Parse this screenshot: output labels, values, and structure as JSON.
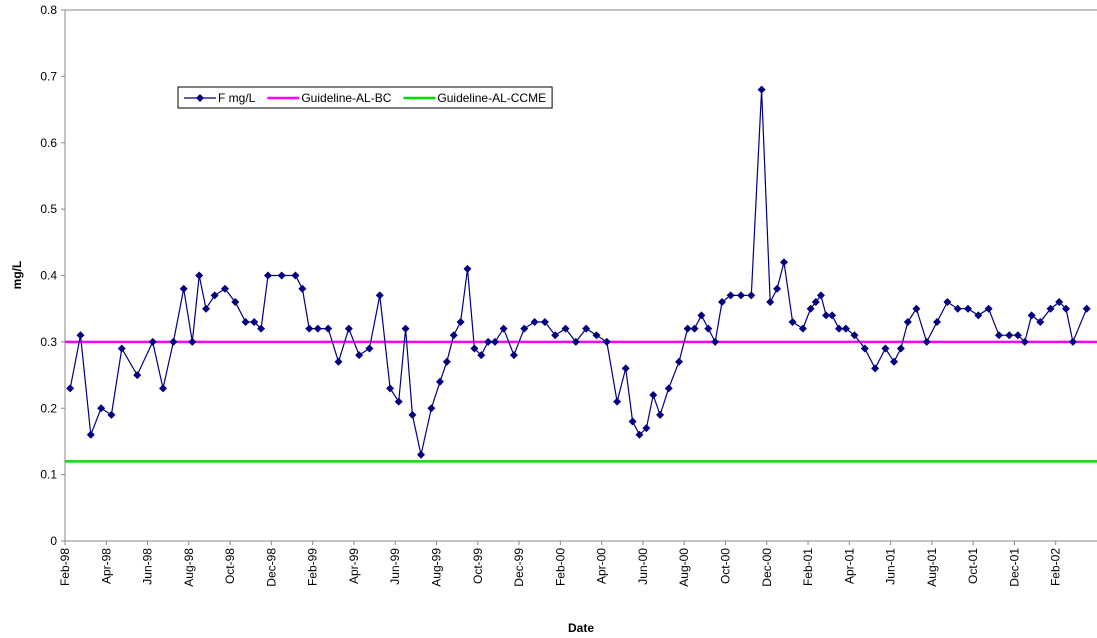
{
  "chart_data": {
    "type": "line",
    "xlabel": "Date",
    "ylabel": "mg/L",
    "ylim": [
      0,
      0.8
    ],
    "yticks": [
      0,
      0.1,
      0.2,
      0.3,
      0.4,
      0.5,
      0.6,
      0.7,
      0.8
    ],
    "xticks": [
      "Feb-98",
      "Apr-98",
      "Jun-98",
      "Aug-98",
      "Oct-98",
      "Dec-98",
      "Feb-99",
      "Apr-99",
      "Jun-99",
      "Aug-99",
      "Oct-99",
      "Dec-99",
      "Feb-00",
      "Apr-00",
      "Jun-00",
      "Aug-00",
      "Oct-00",
      "Dec-00",
      "Feb-01",
      "Apr-01",
      "Jun-01",
      "Aug-01",
      "Oct-01",
      "Dec-01",
      "Feb-02"
    ],
    "x": [
      "Feb-98",
      "Feb-98",
      "Mar-98",
      "Mar-98",
      "Apr-98",
      "Apr-98",
      "May-98",
      "Jun-98",
      "Jun-98",
      "Jul-98",
      "Jul-98",
      "Aug-98",
      "Aug-98",
      "Aug-98",
      "Sep-98",
      "Sep-98",
      "Oct-98",
      "Oct-98",
      "Nov-98",
      "Nov-98",
      "Nov-98",
      "Dec-98",
      "Jan-99",
      "Jan-99",
      "Jan-99",
      "Feb-99",
      "Feb-99",
      "Mar-99",
      "Mar-99",
      "Apr-99",
      "Apr-99",
      "May-99",
      "May-99",
      "Jun-99",
      "Jun-99",
      "Jun-99",
      "Jul-99",
      "Jul-99",
      "Aug-99",
      "Aug-99",
      "Aug-99",
      "Sep-99",
      "Sep-99",
      "Sep-99",
      "Oct-99",
      "Oct-99",
      "Oct-99",
      "Nov-99",
      "Nov-99",
      "Dec-99",
      "Dec-99",
      "Jan-00",
      "Jan-00",
      "Feb-00",
      "Feb-00",
      "Mar-00",
      "Mar-00",
      "Apr-00",
      "Apr-00",
      "May-00",
      "May-00",
      "May-00",
      "Jun-00",
      "Jun-00",
      "Jun-00",
      "Jul-00",
      "Jul-00",
      "Aug-00",
      "Aug-00",
      "Aug-00",
      "Sep-00",
      "Sep-00",
      "Sep-00",
      "Oct-00",
      "Oct-00",
      "Nov-00",
      "Nov-00",
      "Dec-00",
      "Dec-00",
      "Dec-00",
      "Jan-01",
      "Jan-01",
      "Feb-01",
      "Feb-01",
      "Feb-01",
      "Feb-01",
      "Mar-01",
      "Mar-01",
      "Mar-01",
      "Apr-01",
      "Apr-01",
      "May-01",
      "May-01",
      "Jun-01",
      "Jun-01",
      "Jun-01",
      "Jul-01",
      "Jul-01",
      "Aug-01",
      "Aug-01",
      "Sep-01",
      "Sep-01",
      "Oct-01",
      "Oct-01",
      "Nov-01",
      "Nov-01",
      "Dec-01",
      "Dec-01",
      "Dec-01",
      "Jan-02",
      "Jan-02",
      "Feb-02",
      "Feb-02",
      "Feb-02",
      "Mar-02"
    ],
    "series": [
      {
        "name": "F mg/L",
        "color": "#000080",
        "values": [
          0.23,
          0.31,
          0.16,
          0.2,
          0.19,
          0.29,
          0.25,
          0.3,
          0.23,
          0.3,
          0.38,
          0.3,
          0.4,
          0.35,
          0.37,
          0.38,
          0.36,
          0.33,
          0.33,
          0.32,
          0.4,
          0.4,
          0.4,
          0.38,
          0.32,
          0.32,
          0.32,
          0.27,
          0.32,
          0.28,
          0.29,
          0.37,
          0.23,
          0.21,
          0.32,
          0.19,
          0.13,
          0.2,
          0.24,
          0.27,
          0.31,
          0.33,
          0.41,
          0.29,
          0.28,
          0.3,
          0.3,
          0.32,
          0.28,
          0.32,
          0.33,
          0.33,
          0.31,
          0.32,
          0.3,
          0.32,
          0.31,
          0.3,
          0.21,
          0.26,
          0.18,
          0.16,
          0.17,
          0.22,
          0.19,
          0.23,
          0.27,
          0.32,
          0.32,
          0.34,
          0.32,
          0.3,
          0.36,
          0.37,
          0.37,
          0.37,
          0.68,
          0.36,
          0.38,
          0.42,
          0.33,
          0.32,
          0.35,
          0.36,
          0.37,
          0.34,
          0.34,
          0.32,
          0.32,
          0.31,
          0.29,
          0.26,
          0.29,
          0.27,
          0.29,
          0.33,
          0.35,
          0.3,
          0.33,
          0.36,
          0.35,
          0.35,
          0.34,
          0.35,
          0.31,
          0.31,
          0.31,
          0.3,
          0.34,
          0.33,
          0.35,
          0.36,
          0.35,
          0.3,
          0.35
        ]
      }
    ],
    "guidelines": [
      {
        "name": "Guideline-AL-BC",
        "color": "#ff00ff",
        "value": 0.3
      },
      {
        "name": "Guideline-AL-CCME",
        "color": "#00dd00",
        "value": 0.12
      }
    ]
  }
}
